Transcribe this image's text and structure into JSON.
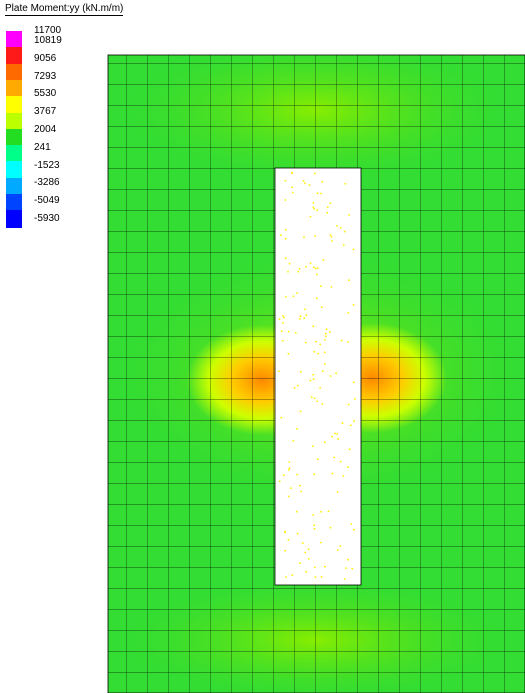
{
  "legend": {
    "title": "Plate Moment:yy (kN.m/m)",
    "levels": [
      "11700",
      "10819",
      "9056",
      "7293",
      "5530",
      "3767",
      "2004",
      "241",
      "-1523",
      "-3286",
      "-5049",
      "-5930"
    ],
    "colors": [
      "#ff00ff",
      "#ff1a1a",
      "#ff6a00",
      "#ffaa00",
      "#ffff00",
      "#bbff00",
      "#22dd22",
      "#00ff88",
      "#00ffff",
      "#00aaff",
      "#0044ff",
      "#0000ff"
    ]
  },
  "contour_colors": {
    "low": "#22dd33",
    "mid": "#77ee00",
    "high": "#ccff00",
    "peak": "#ff8800",
    "edge": "#00ff66"
  },
  "plot": {
    "opening_fill": "#ffffff",
    "mesh_color": "#000000",
    "dot_color": "#ffee00"
  }
}
